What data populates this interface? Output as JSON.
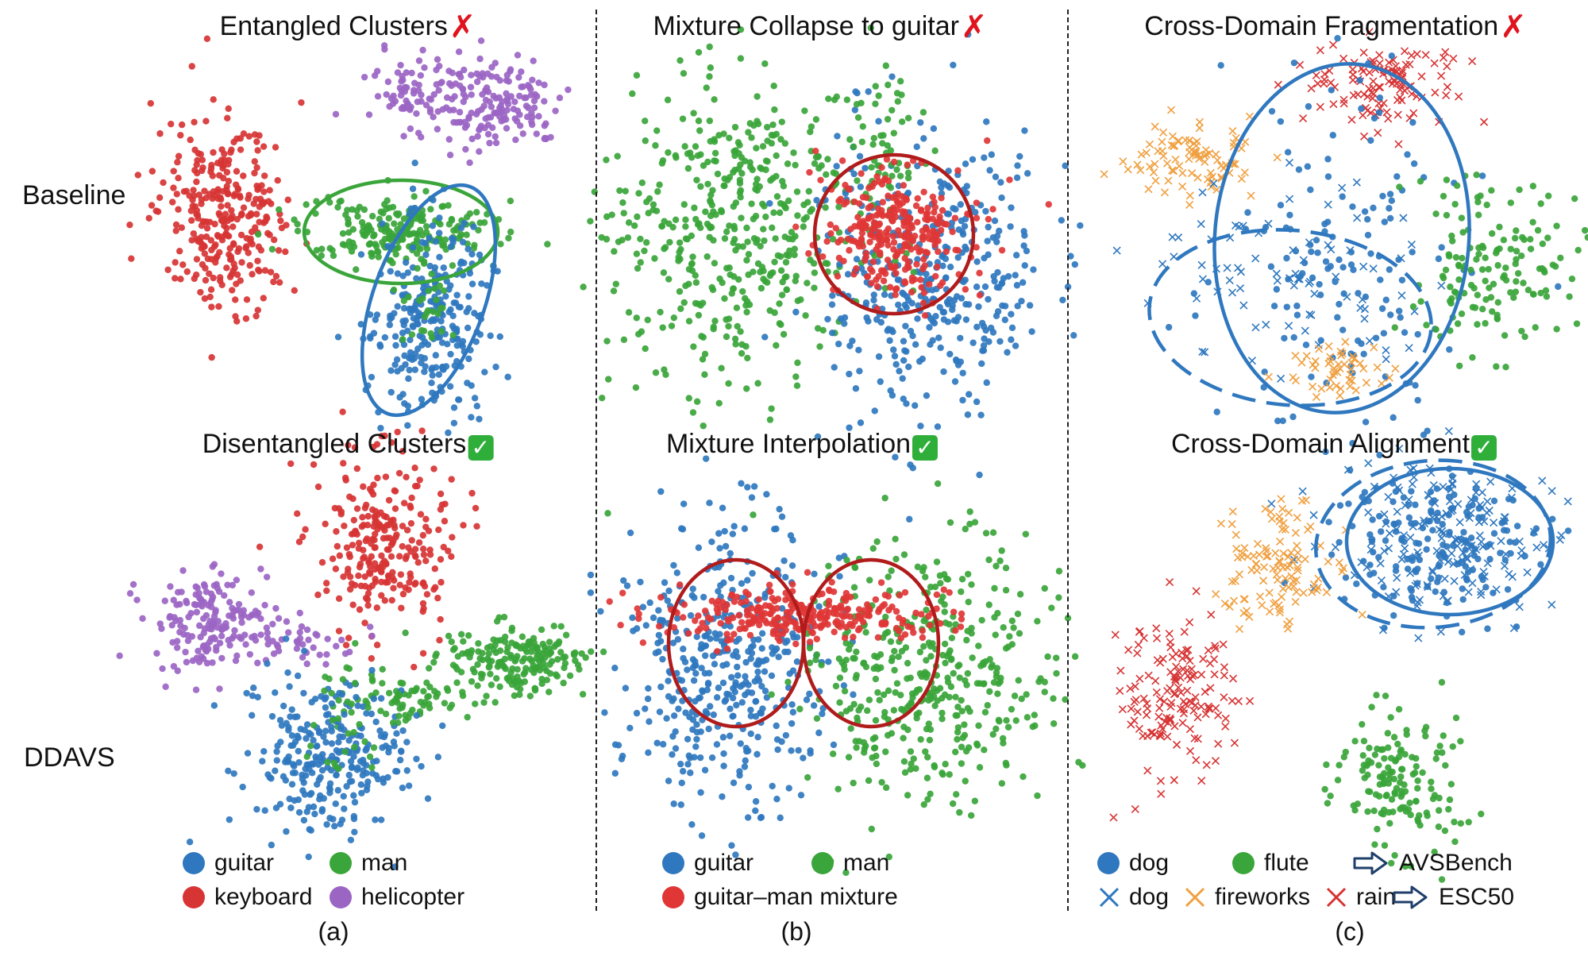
{
  "colors": {
    "guitar": "#2f78bf",
    "man": "#3aa53a",
    "keyboard": "#d73434",
    "helicopter": "#9b65c4",
    "mixture": "#e03636",
    "dog": "#2f78bf",
    "flute": "#3aa53a",
    "fireworks": "#f0a040",
    "rain": "#d73434",
    "ellipse_blue": "#2f78bf",
    "ellipse_green": "#3aa53a",
    "ellipse_red": "#b01c1c"
  },
  "row_labels": {
    "top": "Baseline",
    "bottom": "DDAVS"
  },
  "panels": {
    "a": {
      "top_title": "Entangled Clusters",
      "top_mark": "✗",
      "bottom_title": "Disentangled Clusters",
      "bottom_mark": "✓",
      "sublabel": "(a)",
      "legend": [
        {
          "label": "guitar",
          "color": "#2f78bf",
          "marker": "dot"
        },
        {
          "label": "man",
          "color": "#3aa53a",
          "marker": "dot"
        },
        {
          "label": "keyboard",
          "color": "#d73434",
          "marker": "dot"
        },
        {
          "label": "helicopter",
          "color": "#9b65c4",
          "marker": "dot"
        }
      ]
    },
    "b": {
      "top_title": "Mixture Collapse to guitar",
      "top_mark": "✗",
      "bottom_title": "Mixture Interpolation",
      "bottom_mark": "✓",
      "sublabel": "(b)",
      "legend": [
        {
          "label": "guitar",
          "color": "#2f78bf",
          "marker": "dot"
        },
        {
          "label": "man",
          "color": "#3aa53a",
          "marker": "dot"
        },
        {
          "label": "guitar–man mixture",
          "color": "#e03636",
          "marker": "dot"
        }
      ]
    },
    "c": {
      "top_title": "Cross-Domain Fragmentation",
      "top_mark": "✗",
      "bottom_title": "Cross-Domain Alignment",
      "bottom_mark": "✓",
      "sublabel": "(c)",
      "legend": [
        {
          "label": "dog",
          "color": "#2f78bf",
          "marker": "dot"
        },
        {
          "label": "flute",
          "color": "#3aa53a",
          "marker": "dot"
        },
        {
          "label": "AVSBench",
          "color": "#1f3f6a",
          "marker": "arrow"
        },
        {
          "label": "dog",
          "color": "#2f78bf",
          "marker": "x"
        },
        {
          "label": "fireworks",
          "color": "#f0a040",
          "marker": "x"
        },
        {
          "label": "rain",
          "color": "#d73434",
          "marker": "x"
        },
        {
          "label": "ESC50",
          "color": "#1f3f6a",
          "marker": "arrow"
        }
      ]
    }
  },
  "chart_data": [
    {
      "type": "scatter",
      "title": "Entangled Clusters",
      "row": "Baseline",
      "series": [
        {
          "name": "guitar",
          "marker": "dot"
        },
        {
          "name": "man",
          "marker": "dot"
        },
        {
          "name": "keyboard",
          "marker": "dot"
        },
        {
          "name": "helicopter",
          "marker": "dot"
        }
      ],
      "annotations": [
        "green ellipse around man cluster",
        "blue ellipse around guitar cluster (overlapping)"
      ]
    },
    {
      "type": "scatter",
      "title": "Disentangled Clusters",
      "row": "DDAVS",
      "series": [
        {
          "name": "guitar",
          "marker": "dot"
        },
        {
          "name": "man",
          "marker": "dot"
        },
        {
          "name": "keyboard",
          "marker": "dot"
        },
        {
          "name": "helicopter",
          "marker": "dot"
        }
      ]
    },
    {
      "type": "scatter",
      "title": "Mixture Collapse to guitar",
      "row": "Baseline",
      "series": [
        {
          "name": "guitar",
          "marker": "dot"
        },
        {
          "name": "man",
          "marker": "dot"
        },
        {
          "name": "guitar–man mixture",
          "marker": "dot"
        }
      ],
      "annotations": [
        "red circle around mixture inside guitar cluster"
      ]
    },
    {
      "type": "scatter",
      "title": "Mixture Interpolation",
      "row": "DDAVS",
      "series": [
        {
          "name": "guitar",
          "marker": "dot"
        },
        {
          "name": "man",
          "marker": "dot"
        },
        {
          "name": "guitar–man mixture",
          "marker": "dot"
        }
      ],
      "annotations": [
        "two red circles spanning guitar and man clusters"
      ]
    },
    {
      "type": "scatter",
      "title": "Cross-Domain Fragmentation",
      "row": "Baseline",
      "series": [
        {
          "name": "dog",
          "marker": "dot"
        },
        {
          "name": "flute",
          "marker": "dot"
        },
        {
          "name": "dog",
          "marker": "x"
        },
        {
          "name": "fireworks",
          "marker": "x"
        },
        {
          "name": "rain",
          "marker": "x"
        }
      ],
      "annotations": [
        "solid blue ellipse (AVSBench dog)",
        "dashed blue ellipse (ESC50 dog)"
      ]
    },
    {
      "type": "scatter",
      "title": "Cross-Domain Alignment",
      "row": "DDAVS",
      "series": [
        {
          "name": "dog",
          "marker": "dot"
        },
        {
          "name": "flute",
          "marker": "dot"
        },
        {
          "name": "dog",
          "marker": "x"
        },
        {
          "name": "fireworks",
          "marker": "x"
        },
        {
          "name": "rain",
          "marker": "x"
        }
      ],
      "annotations": [
        "solid and dashed blue ellipses overlapping"
      ]
    }
  ]
}
